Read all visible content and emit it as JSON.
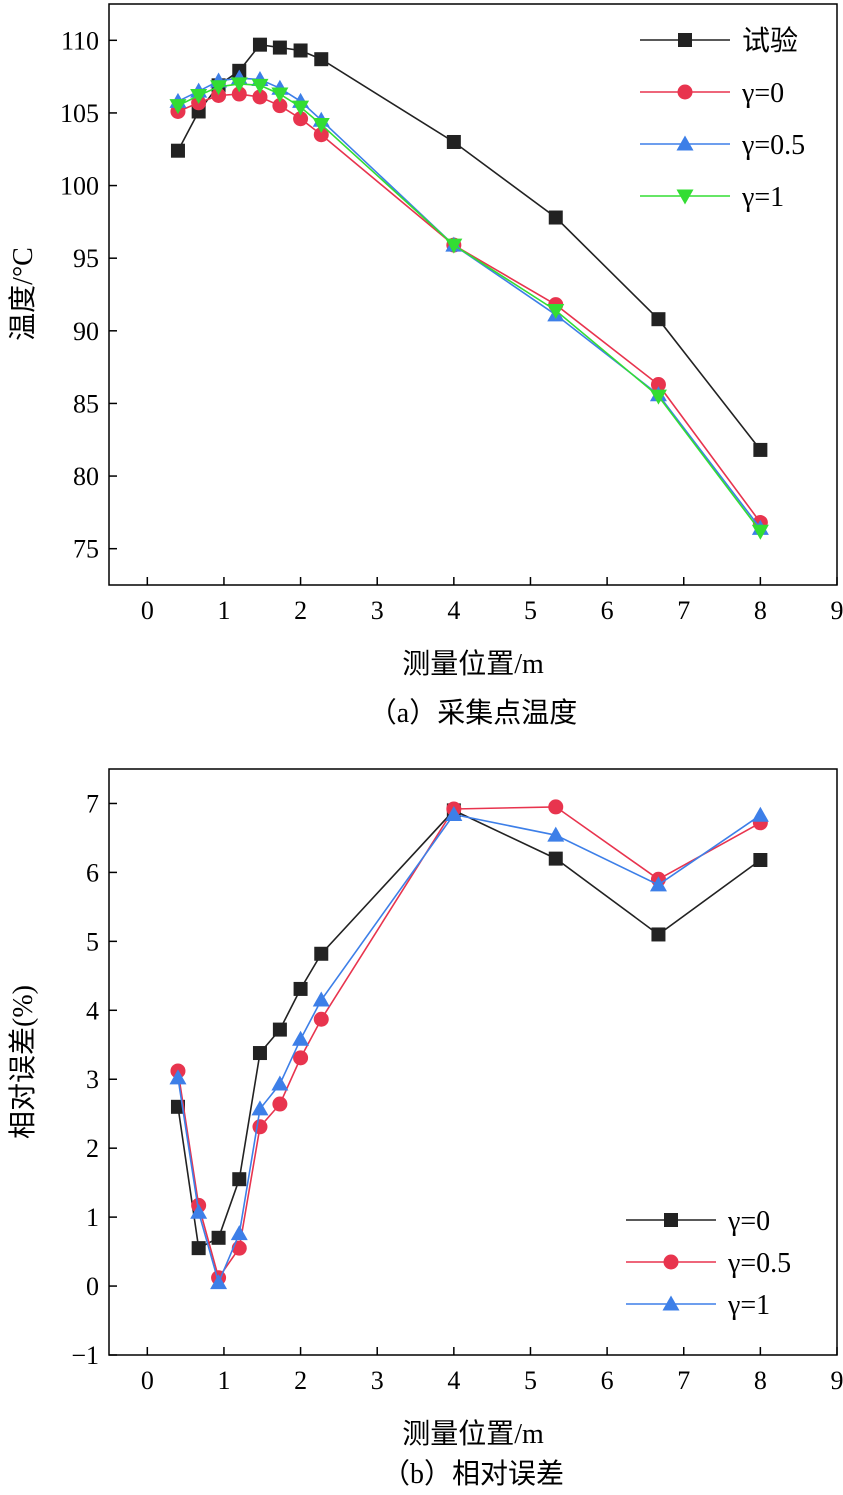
{
  "chart_data": [
    {
      "type": "line",
      "caption": "（a）采集点温度",
      "xlabel": "测量位置/m",
      "ylabel": "温度/°C",
      "xlim": [
        -0.5,
        9
      ],
      "ylim": [
        72.5,
        112.5
      ],
      "xticks": [
        0,
        1,
        2,
        3,
        4,
        5,
        6,
        7,
        8,
        9
      ],
      "yticks": [
        75,
        80,
        85,
        90,
        95,
        100,
        105,
        110
      ],
      "x": [
        0.4,
        0.67,
        0.93,
        1.2,
        1.47,
        1.73,
        2.0,
        2.27,
        4.0,
        5.33,
        6.67,
        8.0
      ],
      "grid": false,
      "legend_position": "top-right",
      "series": [
        {
          "name": "试验",
          "color": "#222222",
          "marker": "square",
          "values": [
            102.4,
            105.1,
            106.9,
            107.9,
            109.7,
            109.5,
            109.3,
            108.7,
            103.0,
            97.8,
            90.8,
            81.8
          ]
        },
        {
          "name": "γ=0",
          "color": "#e8344e",
          "marker": "circle",
          "values": [
            105.1,
            105.7,
            106.2,
            106.3,
            106.1,
            105.5,
            104.6,
            103.5,
            95.9,
            91.8,
            86.3,
            76.8
          ]
        },
        {
          "name": "γ=0.5",
          "color": "#3d7fe8",
          "marker": "triangle-up",
          "values": [
            105.8,
            106.5,
            107.2,
            107.4,
            107.3,
            106.7,
            105.8,
            104.5,
            95.9,
            91.1,
            85.6,
            76.4
          ]
        },
        {
          "name": "γ=1",
          "color": "#33dd33",
          "marker": "triangle-down",
          "values": [
            105.5,
            106.2,
            106.8,
            107.0,
            106.9,
            106.3,
            105.4,
            104.2,
            95.9,
            91.4,
            85.5,
            76.2
          ]
        }
      ]
    },
    {
      "type": "line",
      "caption": "（b）相对误差",
      "xlabel": "测量位置/m",
      "ylabel": "相对误差(%)",
      "xlim": [
        -0.5,
        9
      ],
      "ylim": [
        -1,
        7.5
      ],
      "xticks": [
        0,
        1,
        2,
        3,
        4,
        5,
        6,
        7,
        8,
        9
      ],
      "yticks": [
        -1,
        0,
        1,
        2,
        3,
        4,
        5,
        6,
        7
      ],
      "x": [
        0.4,
        0.67,
        0.93,
        1.2,
        1.47,
        1.73,
        2.0,
        2.27,
        4.0,
        5.33,
        6.67,
        8.0
      ],
      "grid": false,
      "legend_position": "bottom-right",
      "series": [
        {
          "name": "γ=0",
          "color": "#222222",
          "marker": "square",
          "values": [
            2.6,
            0.55,
            0.7,
            1.55,
            3.38,
            3.72,
            4.31,
            4.82,
            6.9,
            6.2,
            5.1,
            6.18
          ]
        },
        {
          "name": "γ=0.5",
          "color": "#e8344e",
          "marker": "circle",
          "values": [
            3.12,
            1.17,
            0.12,
            0.55,
            2.31,
            2.64,
            3.31,
            3.87,
            6.92,
            6.95,
            5.9,
            6.72
          ]
        },
        {
          "name": "γ=1",
          "color": "#3d7fe8",
          "marker": "triangle-up",
          "values": [
            3.02,
            1.07,
            0.05,
            0.76,
            2.57,
            2.93,
            3.58,
            4.15,
            6.84,
            6.54,
            5.82,
            6.83
          ]
        }
      ]
    }
  ]
}
